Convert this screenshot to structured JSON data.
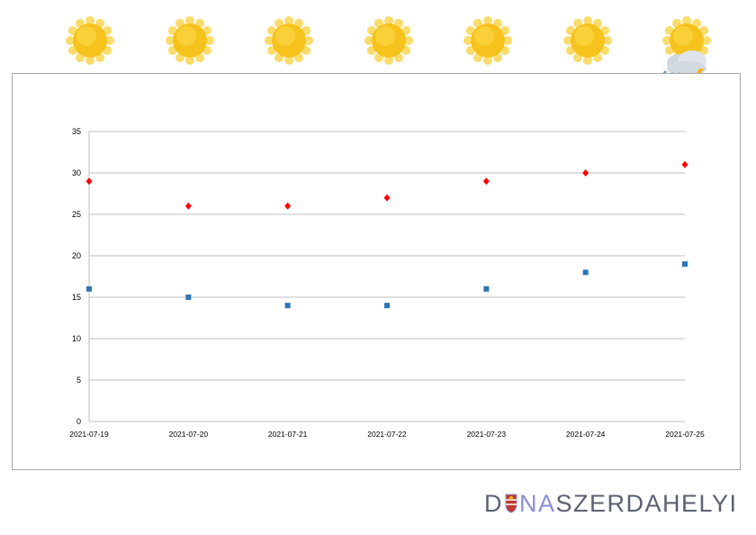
{
  "weather": [
    {
      "date": "2021-07-19",
      "icon": "sun-icon"
    },
    {
      "date": "2021-07-20",
      "icon": "sun-icon"
    },
    {
      "date": "2021-07-21",
      "icon": "sun-icon"
    },
    {
      "date": "2021-07-22",
      "icon": "sun-icon"
    },
    {
      "date": "2021-07-23",
      "icon": "sun-icon"
    },
    {
      "date": "2021-07-24",
      "icon": "sun-icon"
    },
    {
      "date": "2021-07-25",
      "icon": "sun-cloud-rain-thunder-icon"
    }
  ],
  "colors": {
    "max_series": "#ff0000",
    "min_series": "#2e75b6",
    "gridline": "#bfbfbf",
    "axis_text": "#000000",
    "sun": "#f6c21c",
    "sun_rays": "#f9dc6b",
    "logo_dark": "#5b6170",
    "logo_accent": "#8a8fd6"
  },
  "chart_data": {
    "type": "scatter",
    "x": [
      "2021-07-19",
      "2021-07-20",
      "2021-07-21",
      "2021-07-22",
      "2021-07-23",
      "2021-07-24",
      "2021-07-25"
    ],
    "series": [
      {
        "marker": "diamond",
        "color": "#ff0000",
        "values": [
          29,
          26,
          26,
          27,
          29,
          30,
          31
        ]
      },
      {
        "marker": "square",
        "color": "#2e75b6",
        "values": [
          16,
          15,
          14,
          14,
          16,
          18,
          19
        ]
      }
    ],
    "ylim": [
      0,
      35
    ],
    "yticks": [
      0,
      5,
      10,
      15,
      20,
      25,
      30,
      35
    ],
    "grid": true,
    "legend": "none"
  },
  "logo": {
    "part1": "D",
    "part2": "NA",
    "part3": "SZERDAHELYI"
  }
}
